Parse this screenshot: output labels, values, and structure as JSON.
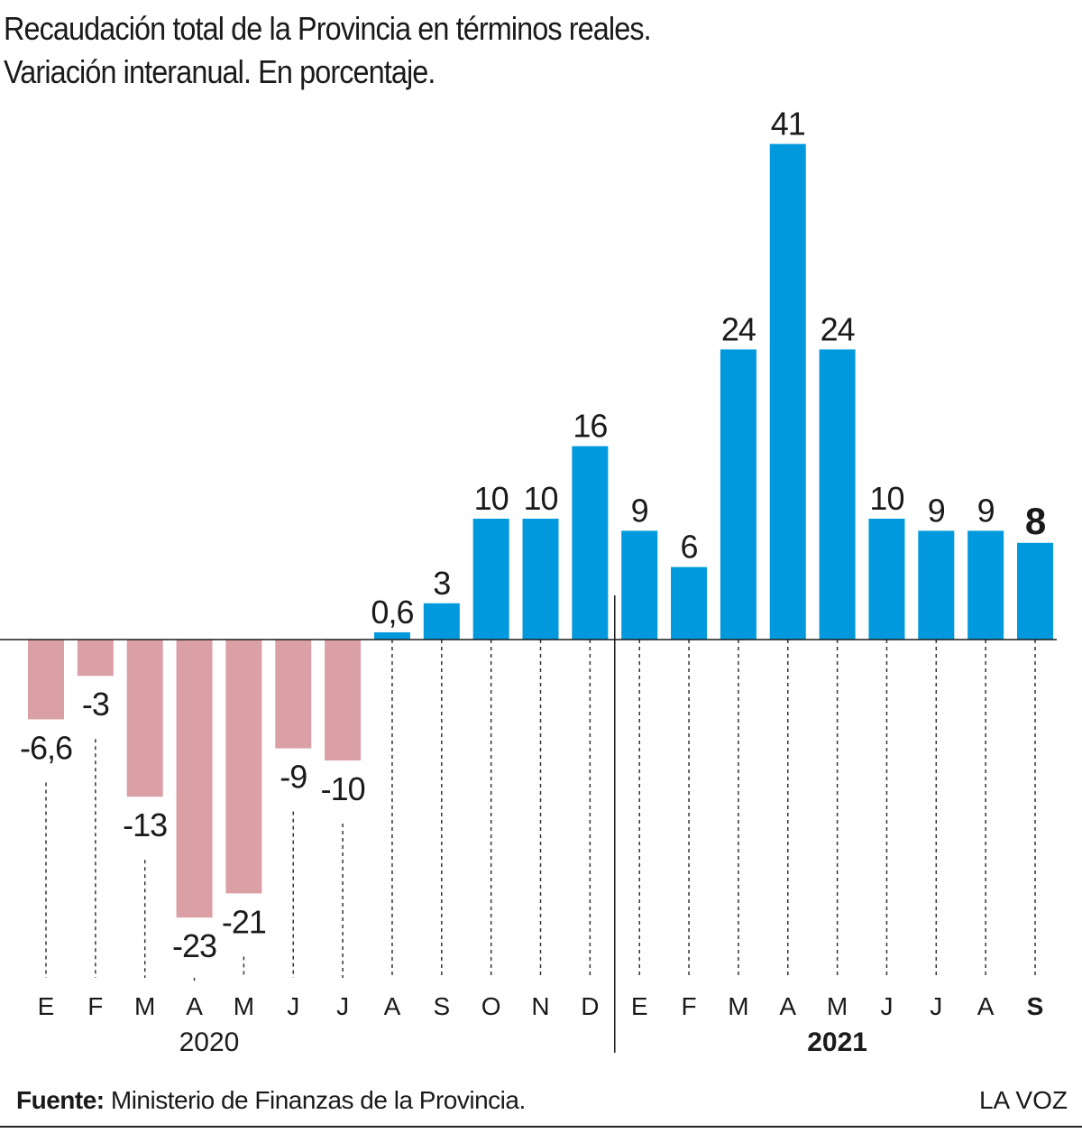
{
  "title": {
    "line1": "Recaudación total de la Provincia en términos reales.",
    "line2": "Variación interanual. En porcentaje."
  },
  "footer": {
    "source_label": "Fuente:",
    "source_text": "Ministerio de Finanzas de la Provincia.",
    "brand": "LA VOZ"
  },
  "colors": {
    "positive": "#0099dd",
    "negative": "#dba0a6",
    "text": "#1a1a1a",
    "guide": "#333333"
  },
  "chart_data": {
    "type": "bar",
    "title": "Recaudación total de la Provincia en términos reales.",
    "subtitle": "Variación interanual. En porcentaje.",
    "xlabel": "",
    "ylabel": "",
    "ylim": [
      -27.5,
      41
    ],
    "grid": false,
    "legend": "none",
    "categories": [
      "E",
      "F",
      "M",
      "A",
      "M",
      "J",
      "J",
      "A",
      "S",
      "O",
      "N",
      "D",
      "E",
      "F",
      "M",
      "A",
      "M",
      "J",
      "J",
      "A",
      "S"
    ],
    "values": [
      -6.6,
      -3,
      -13,
      -23,
      -21,
      -9,
      -10,
      0.6,
      3,
      10,
      10,
      16,
      9,
      6,
      24,
      41,
      24,
      10,
      9,
      9,
      8
    ],
    "data_labels": [
      "-6,6",
      "-3",
      "-13",
      "-23",
      "-21",
      "-9",
      "-10",
      "0,6",
      "3",
      "10",
      "10",
      "16",
      "9",
      "6",
      "24",
      "41",
      "24",
      "10",
      "9",
      "9",
      "8"
    ],
    "year_groups": [
      {
        "label": "2020",
        "first_index": 0,
        "last_index": 11,
        "bold": false
      },
      {
        "label": "2021",
        "first_index": 12,
        "last_index": 20,
        "bold": true
      }
    ],
    "highlight_index": 20
  }
}
